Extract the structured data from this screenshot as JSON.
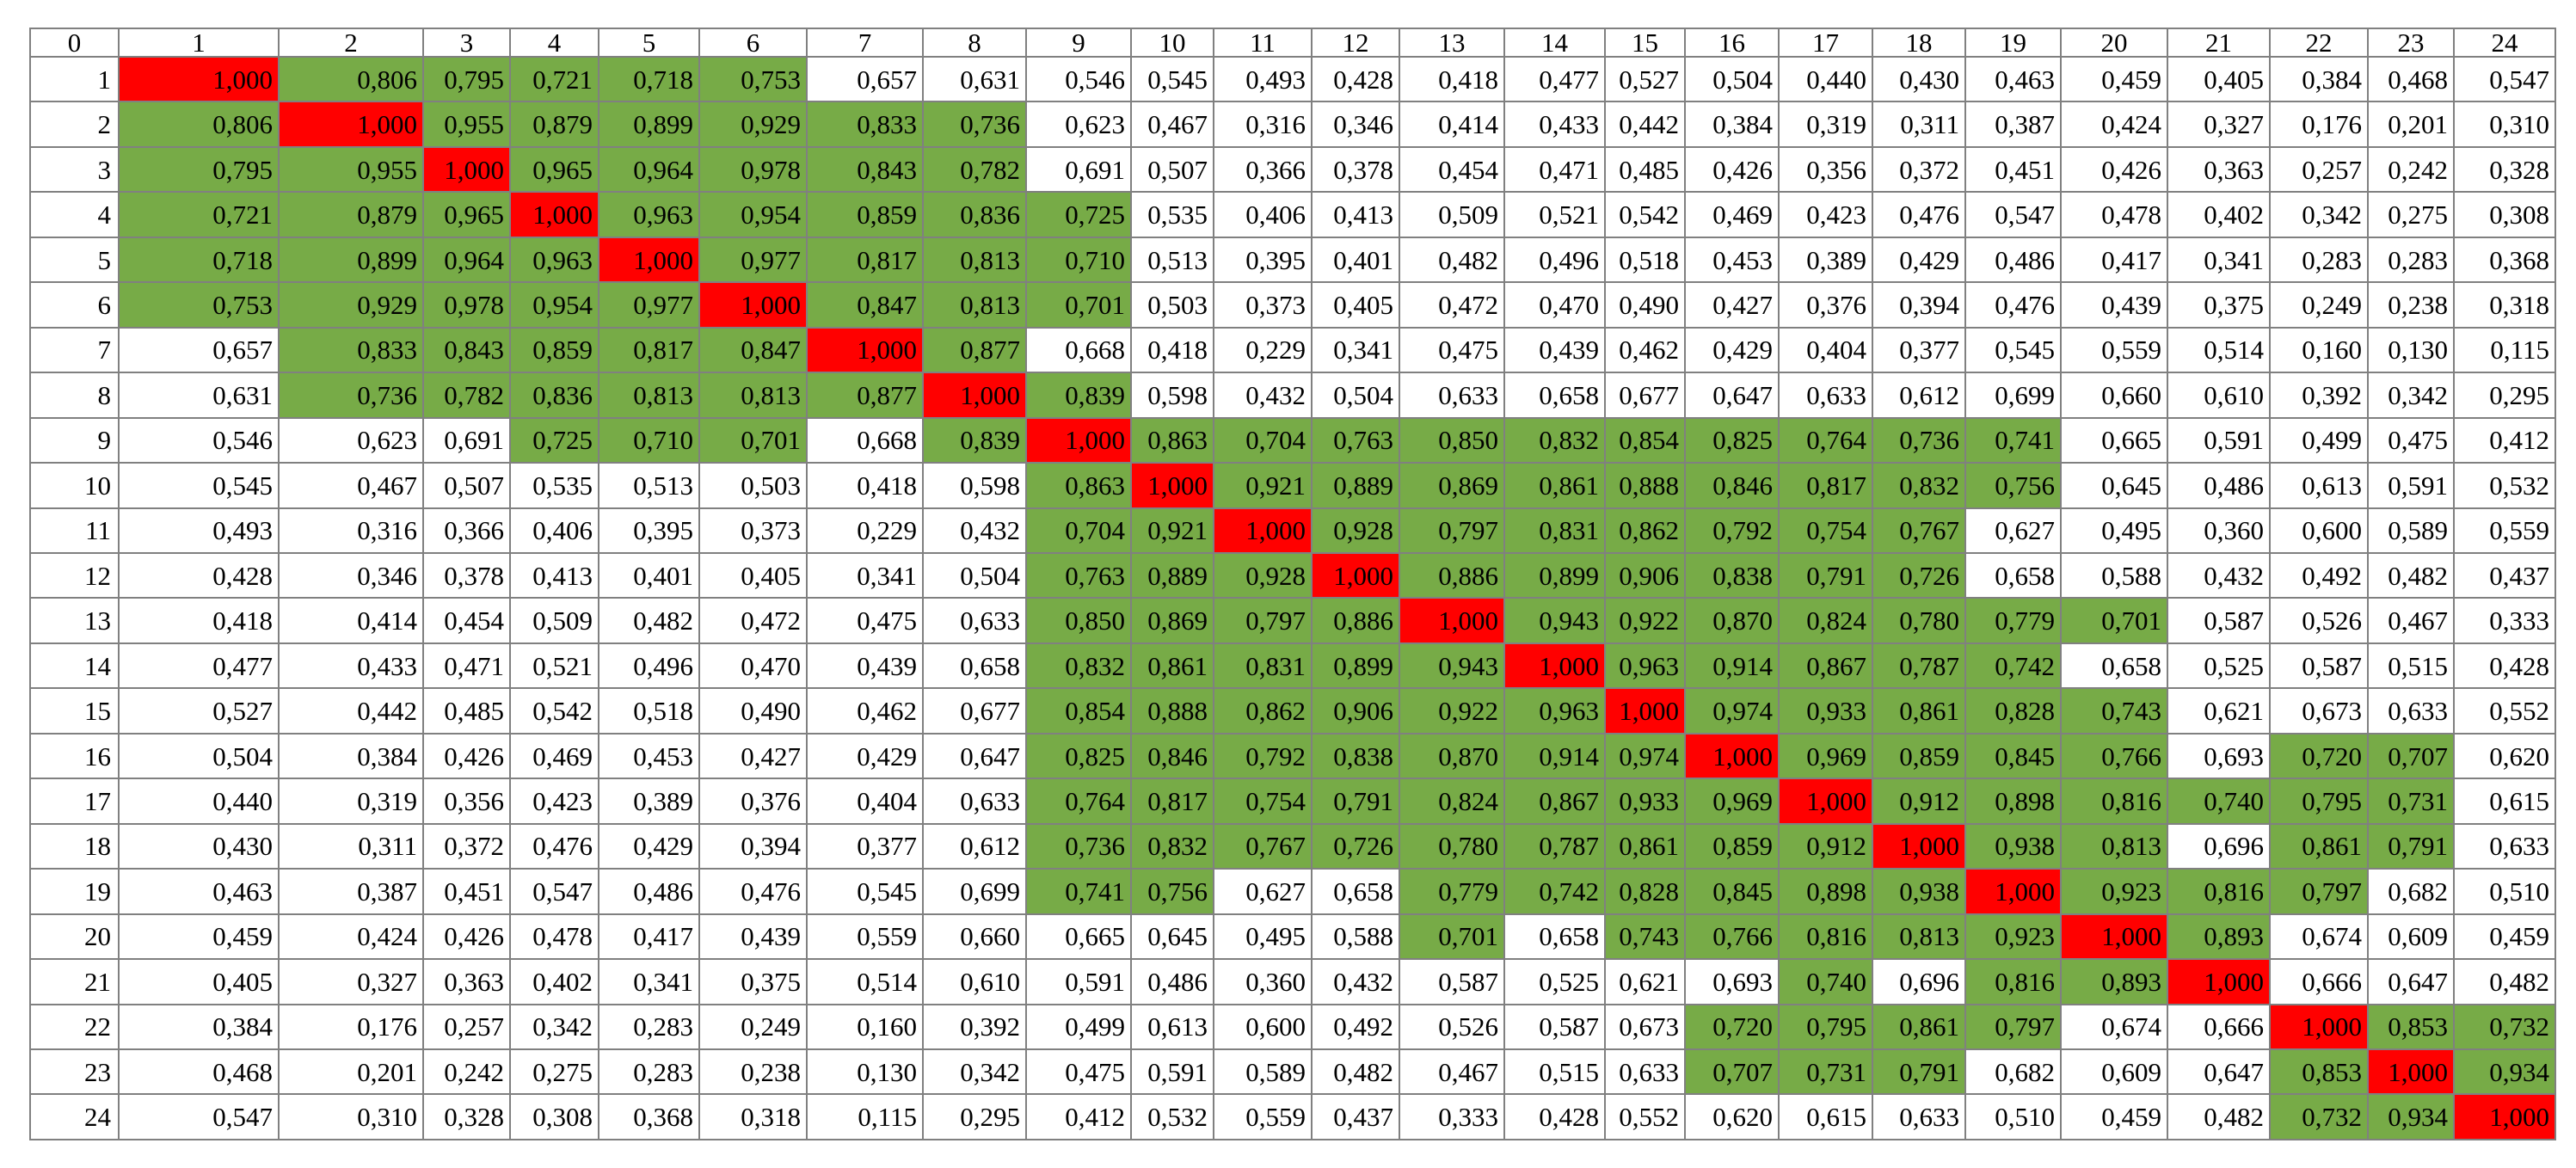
{
  "columns": [
    "0",
    "1",
    "2",
    "3",
    "4",
    "5",
    "6",
    "7",
    "8",
    "9",
    "10",
    "11",
    "12",
    "13",
    "14",
    "15",
    "16",
    "17",
    "18",
    "19",
    "20",
    "21",
    "22",
    "23",
    "24"
  ],
  "colors": {
    "diagonal": "#ff0000",
    "high_correlation": "#77ab47",
    "default": "#ffffff",
    "border": "#808080"
  },
  "rows": [
    {
      "label": "1",
      "values": [
        "1,000",
        "0,806",
        "0,795",
        "0,721",
        "0,718",
        "0,753",
        "0,657",
        "0,631",
        "0,546",
        "0,545",
        "0,493",
        "0,428",
        "0,418",
        "0,477",
        "0,527",
        "0,504",
        "0,440",
        "0,430",
        "0,463",
        "0,459",
        "0,405",
        "0,384",
        "0,468",
        "0,547"
      ],
      "highlight": [
        "r",
        "g",
        "g",
        "g",
        "g",
        "g",
        "",
        "",
        "",
        "",
        "",
        "",
        "",
        "",
        "",
        "",
        "",
        "",
        "",
        "",
        "",
        "",
        "",
        ""
      ]
    },
    {
      "label": "2",
      "values": [
        "0,806",
        "1,000",
        "0,955",
        "0,879",
        "0,899",
        "0,929",
        "0,833",
        "0,736",
        "0,623",
        "0,467",
        "0,316",
        "0,346",
        "0,414",
        "0,433",
        "0,442",
        "0,384",
        "0,319",
        "0,311",
        "0,387",
        "0,424",
        "0,327",
        "0,176",
        "0,201",
        "0,310"
      ],
      "highlight": [
        "g",
        "r",
        "g",
        "g",
        "g",
        "g",
        "g",
        "g",
        "",
        "",
        "",
        "",
        "",
        "",
        "",
        "",
        "",
        "",
        "",
        "",
        "",
        "",
        "",
        ""
      ]
    },
    {
      "label": "3",
      "values": [
        "0,795",
        "0,955",
        "1,000",
        "0,965",
        "0,964",
        "0,978",
        "0,843",
        "0,782",
        "0,691",
        "0,507",
        "0,366",
        "0,378",
        "0,454",
        "0,471",
        "0,485",
        "0,426",
        "0,356",
        "0,372",
        "0,451",
        "0,426",
        "0,363",
        "0,257",
        "0,242",
        "0,328"
      ],
      "highlight": [
        "g",
        "g",
        "r",
        "g",
        "g",
        "g",
        "g",
        "g",
        "",
        "",
        "",
        "",
        "",
        "",
        "",
        "",
        "",
        "",
        "",
        "",
        "",
        "",
        "",
        ""
      ]
    },
    {
      "label": "4",
      "values": [
        "0,721",
        "0,879",
        "0,965",
        "1,000",
        "0,963",
        "0,954",
        "0,859",
        "0,836",
        "0,725",
        "0,535",
        "0,406",
        "0,413",
        "0,509",
        "0,521",
        "0,542",
        "0,469",
        "0,423",
        "0,476",
        "0,547",
        "0,478",
        "0,402",
        "0,342",
        "0,275",
        "0,308"
      ],
      "highlight": [
        "g",
        "g",
        "g",
        "r",
        "g",
        "g",
        "g",
        "g",
        "g",
        "",
        "",
        "",
        "",
        "",
        "",
        "",
        "",
        "",
        "",
        "",
        "",
        "",
        "",
        ""
      ]
    },
    {
      "label": "5",
      "values": [
        "0,718",
        "0,899",
        "0,964",
        "0,963",
        "1,000",
        "0,977",
        "0,817",
        "0,813",
        "0,710",
        "0,513",
        "0,395",
        "0,401",
        "0,482",
        "0,496",
        "0,518",
        "0,453",
        "0,389",
        "0,429",
        "0,486",
        "0,417",
        "0,341",
        "0,283",
        "0,283",
        "0,368"
      ],
      "highlight": [
        "g",
        "g",
        "g",
        "g",
        "r",
        "g",
        "g",
        "g",
        "g",
        "",
        "",
        "",
        "",
        "",
        "",
        "",
        "",
        "",
        "",
        "",
        "",
        "",
        "",
        ""
      ]
    },
    {
      "label": "6",
      "values": [
        "0,753",
        "0,929",
        "0,978",
        "0,954",
        "0,977",
        "1,000",
        "0,847",
        "0,813",
        "0,701",
        "0,503",
        "0,373",
        "0,405",
        "0,472",
        "0,470",
        "0,490",
        "0,427",
        "0,376",
        "0,394",
        "0,476",
        "0,439",
        "0,375",
        "0,249",
        "0,238",
        "0,318"
      ],
      "highlight": [
        "g",
        "g",
        "g",
        "g",
        "g",
        "r",
        "g",
        "g",
        "g",
        "",
        "",
        "",
        "",
        "",
        "",
        "",
        "",
        "",
        "",
        "",
        "",
        "",
        "",
        ""
      ]
    },
    {
      "label": "7",
      "values": [
        "0,657",
        "0,833",
        "0,843",
        "0,859",
        "0,817",
        "0,847",
        "1,000",
        "0,877",
        "0,668",
        "0,418",
        "0,229",
        "0,341",
        "0,475",
        "0,439",
        "0,462",
        "0,429",
        "0,404",
        "0,377",
        "0,545",
        "0,559",
        "0,514",
        "0,160",
        "0,130",
        "0,115"
      ],
      "highlight": [
        "",
        "g",
        "g",
        "g",
        "g",
        "g",
        "r",
        "g",
        "",
        "",
        "",
        "",
        "",
        "",
        "",
        "",
        "",
        "",
        "",
        "",
        "",
        "",
        "",
        ""
      ]
    },
    {
      "label": "8",
      "values": [
        "0,631",
        "0,736",
        "0,782",
        "0,836",
        "0,813",
        "0,813",
        "0,877",
        "1,000",
        "0,839",
        "0,598",
        "0,432",
        "0,504",
        "0,633",
        "0,658",
        "0,677",
        "0,647",
        "0,633",
        "0,612",
        "0,699",
        "0,660",
        "0,610",
        "0,392",
        "0,342",
        "0,295"
      ],
      "highlight": [
        "",
        "g",
        "g",
        "g",
        "g",
        "g",
        "g",
        "r",
        "g",
        "",
        "",
        "",
        "",
        "",
        "",
        "",
        "",
        "",
        "",
        "",
        "",
        "",
        "",
        ""
      ]
    },
    {
      "label": "9",
      "values": [
        "0,546",
        "0,623",
        "0,691",
        "0,725",
        "0,710",
        "0,701",
        "0,668",
        "0,839",
        "1,000",
        "0,863",
        "0,704",
        "0,763",
        "0,850",
        "0,832",
        "0,854",
        "0,825",
        "0,764",
        "0,736",
        "0,741",
        "0,665",
        "0,591",
        "0,499",
        "0,475",
        "0,412"
      ],
      "highlight": [
        "",
        "",
        "",
        "g",
        "g",
        "g",
        "",
        "g",
        "r",
        "g",
        "g",
        "g",
        "g",
        "g",
        "g",
        "g",
        "g",
        "g",
        "g",
        "",
        "",
        "",
        "",
        ""
      ]
    },
    {
      "label": "10",
      "values": [
        "0,545",
        "0,467",
        "0,507",
        "0,535",
        "0,513",
        "0,503",
        "0,418",
        "0,598",
        "0,863",
        "1,000",
        "0,921",
        "0,889",
        "0,869",
        "0,861",
        "0,888",
        "0,846",
        "0,817",
        "0,832",
        "0,756",
        "0,645",
        "0,486",
        "0,613",
        "0,591",
        "0,532"
      ],
      "highlight": [
        "",
        "",
        "",
        "",
        "",
        "",
        "",
        "",
        "g",
        "r",
        "g",
        "g",
        "g",
        "g",
        "g",
        "g",
        "g",
        "g",
        "g",
        "",
        "",
        "",
        "",
        ""
      ]
    },
    {
      "label": "11",
      "values": [
        "0,493",
        "0,316",
        "0,366",
        "0,406",
        "0,395",
        "0,373",
        "0,229",
        "0,432",
        "0,704",
        "0,921",
        "1,000",
        "0,928",
        "0,797",
        "0,831",
        "0,862",
        "0,792",
        "0,754",
        "0,767",
        "0,627",
        "0,495",
        "0,360",
        "0,600",
        "0,589",
        "0,559"
      ],
      "highlight": [
        "",
        "",
        "",
        "",
        "",
        "",
        "",
        "",
        "g",
        "g",
        "r",
        "g",
        "g",
        "g",
        "g",
        "g",
        "g",
        "g",
        "",
        "",
        "",
        "",
        "",
        ""
      ]
    },
    {
      "label": "12",
      "values": [
        "0,428",
        "0,346",
        "0,378",
        "0,413",
        "0,401",
        "0,405",
        "0,341",
        "0,504",
        "0,763",
        "0,889",
        "0,928",
        "1,000",
        "0,886",
        "0,899",
        "0,906",
        "0,838",
        "0,791",
        "0,726",
        "0,658",
        "0,588",
        "0,432",
        "0,492",
        "0,482",
        "0,437"
      ],
      "highlight": [
        "",
        "",
        "",
        "",
        "",
        "",
        "",
        "",
        "g",
        "g",
        "g",
        "r",
        "g",
        "g",
        "g",
        "g",
        "g",
        "g",
        "",
        "",
        "",
        "",
        "",
        ""
      ]
    },
    {
      "label": "13",
      "values": [
        "0,418",
        "0,414",
        "0,454",
        "0,509",
        "0,482",
        "0,472",
        "0,475",
        "0,633",
        "0,850",
        "0,869",
        "0,797",
        "0,886",
        "1,000",
        "0,943",
        "0,922",
        "0,870",
        "0,824",
        "0,780",
        "0,779",
        "0,701",
        "0,587",
        "0,526",
        "0,467",
        "0,333"
      ],
      "highlight": [
        "",
        "",
        "",
        "",
        "",
        "",
        "",
        "",
        "g",
        "g",
        "g",
        "g",
        "r",
        "g",
        "g",
        "g",
        "g",
        "g",
        "g",
        "g",
        "",
        "",
        "",
        ""
      ]
    },
    {
      "label": "14",
      "values": [
        "0,477",
        "0,433",
        "0,471",
        "0,521",
        "0,496",
        "0,470",
        "0,439",
        "0,658",
        "0,832",
        "0,861",
        "0,831",
        "0,899",
        "0,943",
        "1,000",
        "0,963",
        "0,914",
        "0,867",
        "0,787",
        "0,742",
        "0,658",
        "0,525",
        "0,587",
        "0,515",
        "0,428"
      ],
      "highlight": [
        "",
        "",
        "",
        "",
        "",
        "",
        "",
        "",
        "g",
        "g",
        "g",
        "g",
        "g",
        "r",
        "g",
        "g",
        "g",
        "g",
        "g",
        "",
        "",
        "",
        "",
        ""
      ]
    },
    {
      "label": "15",
      "values": [
        "0,527",
        "0,442",
        "0,485",
        "0,542",
        "0,518",
        "0,490",
        "0,462",
        "0,677",
        "0,854",
        "0,888",
        "0,862",
        "0,906",
        "0,922",
        "0,963",
        "1,000",
        "0,974",
        "0,933",
        "0,861",
        "0,828",
        "0,743",
        "0,621",
        "0,673",
        "0,633",
        "0,552"
      ],
      "highlight": [
        "",
        "",
        "",
        "",
        "",
        "",
        "",
        "",
        "g",
        "g",
        "g",
        "g",
        "g",
        "g",
        "r",
        "g",
        "g",
        "g",
        "g",
        "g",
        "",
        "",
        "",
        ""
      ]
    },
    {
      "label": "16",
      "values": [
        "0,504",
        "0,384",
        "0,426",
        "0,469",
        "0,453",
        "0,427",
        "0,429",
        "0,647",
        "0,825",
        "0,846",
        "0,792",
        "0,838",
        "0,870",
        "0,914",
        "0,974",
        "1,000",
        "0,969",
        "0,859",
        "0,845",
        "0,766",
        "0,693",
        "0,720",
        "0,707",
        "0,620"
      ],
      "highlight": [
        "",
        "",
        "",
        "",
        "",
        "",
        "",
        "",
        "g",
        "g",
        "g",
        "g",
        "g",
        "g",
        "g",
        "r",
        "g",
        "g",
        "g",
        "g",
        "",
        "g",
        "g",
        ""
      ]
    },
    {
      "label": "17",
      "values": [
        "0,440",
        "0,319",
        "0,356",
        "0,423",
        "0,389",
        "0,376",
        "0,404",
        "0,633",
        "0,764",
        "0,817",
        "0,754",
        "0,791",
        "0,824",
        "0,867",
        "0,933",
        "0,969",
        "1,000",
        "0,912",
        "0,898",
        "0,816",
        "0,740",
        "0,795",
        "0,731",
        "0,615"
      ],
      "highlight": [
        "",
        "",
        "",
        "",
        "",
        "",
        "",
        "",
        "g",
        "g",
        "g",
        "g",
        "g",
        "g",
        "g",
        "g",
        "r",
        "g",
        "g",
        "g",
        "g",
        "g",
        "g",
        ""
      ]
    },
    {
      "label": "18",
      "values": [
        "0,430",
        "0,311",
        "0,372",
        "0,476",
        "0,429",
        "0,394",
        "0,377",
        "0,612",
        "0,736",
        "0,832",
        "0,767",
        "0,726",
        "0,780",
        "0,787",
        "0,861",
        "0,859",
        "0,912",
        "1,000",
        "0,938",
        "0,813",
        "0,696",
        "0,861",
        "0,791",
        "0,633"
      ],
      "highlight": [
        "",
        "",
        "",
        "",
        "",
        "",
        "",
        "",
        "g",
        "g",
        "g",
        "g",
        "g",
        "g",
        "g",
        "g",
        "g",
        "r",
        "g",
        "g",
        "",
        "g",
        "g",
        ""
      ]
    },
    {
      "label": "19",
      "values": [
        "0,463",
        "0,387",
        "0,451",
        "0,547",
        "0,486",
        "0,476",
        "0,545",
        "0,699",
        "0,741",
        "0,756",
        "0,627",
        "0,658",
        "0,779",
        "0,742",
        "0,828",
        "0,845",
        "0,898",
        "0,938",
        "1,000",
        "0,923",
        "0,816",
        "0,797",
        "0,682",
        "0,510"
      ],
      "highlight": [
        "",
        "",
        "",
        "",
        "",
        "",
        "",
        "",
        "g",
        "g",
        "",
        "",
        "g",
        "g",
        "g",
        "g",
        "g",
        "g",
        "r",
        "g",
        "g",
        "g",
        "",
        ""
      ]
    },
    {
      "label": "20",
      "values": [
        "0,459",
        "0,424",
        "0,426",
        "0,478",
        "0,417",
        "0,439",
        "0,559",
        "0,660",
        "0,665",
        "0,645",
        "0,495",
        "0,588",
        "0,701",
        "0,658",
        "0,743",
        "0,766",
        "0,816",
        "0,813",
        "0,923",
        "1,000",
        "0,893",
        "0,674",
        "0,609",
        "0,459"
      ],
      "highlight": [
        "",
        "",
        "",
        "",
        "",
        "",
        "",
        "",
        "",
        "",
        "",
        "",
        "g",
        "",
        "g",
        "g",
        "g",
        "g",
        "g",
        "r",
        "g",
        "",
        "",
        ""
      ]
    },
    {
      "label": "21",
      "values": [
        "0,405",
        "0,327",
        "0,363",
        "0,402",
        "0,341",
        "0,375",
        "0,514",
        "0,610",
        "0,591",
        "0,486",
        "0,360",
        "0,432",
        "0,587",
        "0,525",
        "0,621",
        "0,693",
        "0,740",
        "0,696",
        "0,816",
        "0,893",
        "1,000",
        "0,666",
        "0,647",
        "0,482"
      ],
      "highlight": [
        "",
        "",
        "",
        "",
        "",
        "",
        "",
        "",
        "",
        "",
        "",
        "",
        "",
        "",
        "",
        "",
        "g",
        "",
        "g",
        "g",
        "r",
        "",
        "",
        ""
      ]
    },
    {
      "label": "22",
      "values": [
        "0,384",
        "0,176",
        "0,257",
        "0,342",
        "0,283",
        "0,249",
        "0,160",
        "0,392",
        "0,499",
        "0,613",
        "0,600",
        "0,492",
        "0,526",
        "0,587",
        "0,673",
        "0,720",
        "0,795",
        "0,861",
        "0,797",
        "0,674",
        "0,666",
        "1,000",
        "0,853",
        "0,732"
      ],
      "highlight": [
        "",
        "",
        "",
        "",
        "",
        "",
        "",
        "",
        "",
        "",
        "",
        "",
        "",
        "",
        "",
        "g",
        "g",
        "g",
        "g",
        "",
        "",
        "r",
        "g",
        "g"
      ]
    },
    {
      "label": "23",
      "values": [
        "0,468",
        "0,201",
        "0,242",
        "0,275",
        "0,283",
        "0,238",
        "0,130",
        "0,342",
        "0,475",
        "0,591",
        "0,589",
        "0,482",
        "0,467",
        "0,515",
        "0,633",
        "0,707",
        "0,731",
        "0,791",
        "0,682",
        "0,609",
        "0,647",
        "0,853",
        "1,000",
        "0,934"
      ],
      "highlight": [
        "",
        "",
        "",
        "",
        "",
        "",
        "",
        "",
        "",
        "",
        "",
        "",
        "",
        "",
        "",
        "g",
        "g",
        "g",
        "",
        "",
        "",
        "g",
        "r",
        "g"
      ]
    },
    {
      "label": "24",
      "values": [
        "0,547",
        "0,310",
        "0,328",
        "0,308",
        "0,368",
        "0,318",
        "0,115",
        "0,295",
        "0,412",
        "0,532",
        "0,559",
        "0,437",
        "0,333",
        "0,428",
        "0,552",
        "0,620",
        "0,615",
        "0,633",
        "0,510",
        "0,459",
        "0,482",
        "0,732",
        "0,934",
        "1,000"
      ],
      "highlight": [
        "",
        "",
        "",
        "",
        "",
        "",
        "",
        "",
        "",
        "",
        "",
        "",
        "",
        "",
        "",
        "",
        "",
        "",
        "",
        "",
        "",
        "g",
        "g",
        "r"
      ]
    }
  ]
}
